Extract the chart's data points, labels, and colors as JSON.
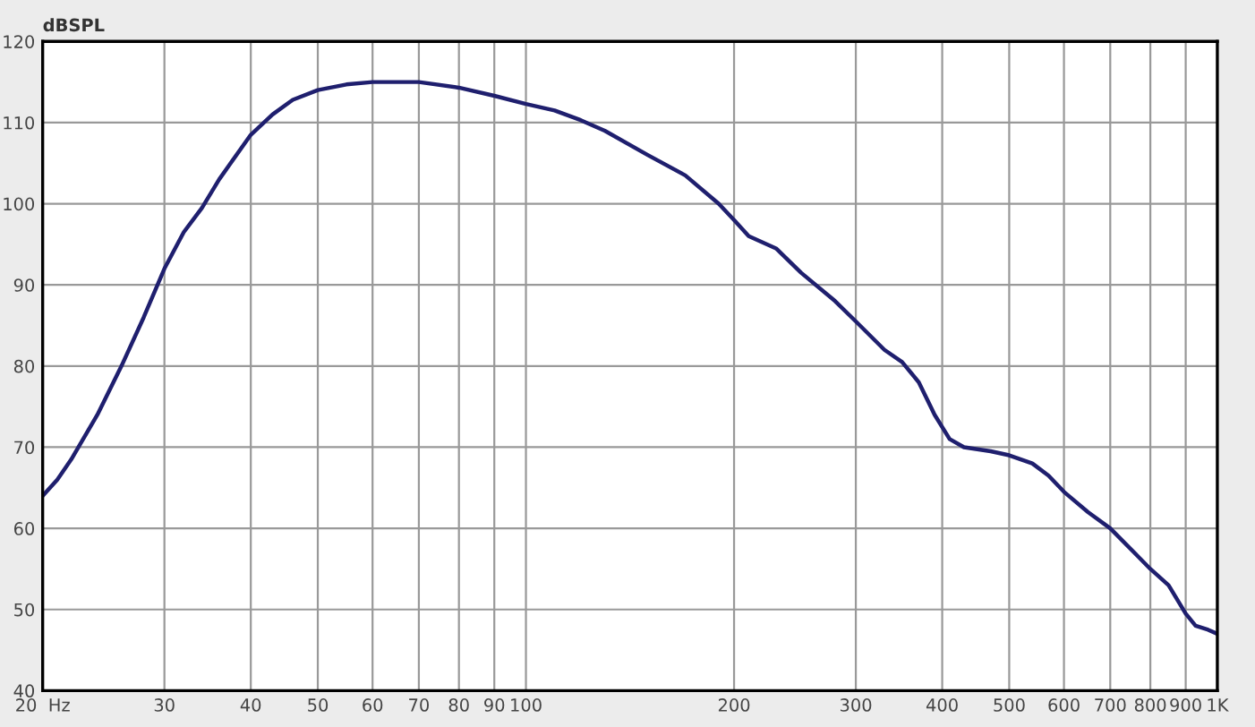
{
  "chart_data": {
    "type": "line",
    "ylabel": "dBSPL",
    "log": "x",
    "grid": true,
    "xlim": [
      20,
      1000
    ],
    "ylim": [
      40,
      120
    ],
    "xticks": [
      {
        "value": 20,
        "label": "20  Hz"
      },
      30,
      40,
      50,
      60,
      70,
      80,
      90,
      100,
      200,
      300,
      400,
      500,
      600,
      700,
      800,
      900,
      {
        "value": 1000,
        "label": "1K"
      }
    ],
    "yticks": [
      40,
      50,
      60,
      70,
      80,
      90,
      100,
      110,
      120
    ],
    "series": [
      {
        "color": "#1f1f6e",
        "x": [
          20,
          21,
          22,
          24,
          26,
          28,
          30,
          32,
          34,
          36,
          40,
          43,
          46,
          50,
          55,
          60,
          70,
          80,
          90,
          100,
          110,
          120,
          130,
          150,
          170,
          190,
          200,
          210,
          230,
          250,
          280,
          300,
          330,
          350,
          370,
          390,
          410,
          430,
          470,
          500,
          540,
          570,
          600,
          650,
          700,
          800,
          850,
          900,
          930,
          970,
          1000
        ],
        "values": [
          64,
          66,
          68.5,
          74,
          80,
          86,
          92,
          96.5,
          99.5,
          103,
          108.5,
          111,
          112.8,
          114,
          114.7,
          115,
          115,
          114.3,
          113.3,
          112.3,
          111.5,
          110.3,
          109,
          106,
          103.5,
          100,
          98,
          96,
          94.5,
          91.5,
          88,
          85.5,
          82,
          80.5,
          78,
          74,
          71,
          70,
          69.5,
          69,
          68,
          66.5,
          64.5,
          62,
          60,
          55,
          53,
          49.5,
          48,
          47.5,
          47
        ]
      }
    ]
  }
}
